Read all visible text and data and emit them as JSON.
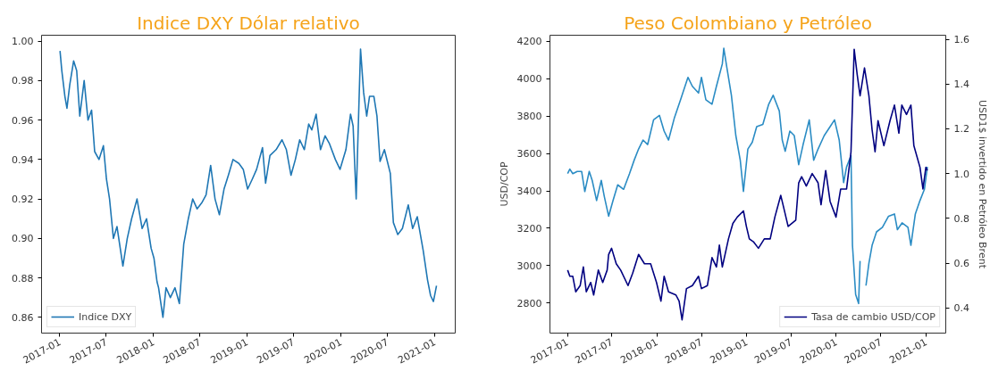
{
  "chart_data": [
    {
      "type": "line",
      "title": "Indice DXY Dólar relativo",
      "legend": "bottom left",
      "grid": false,
      "xlim": [
        "2016-10-22",
        "2021-03-22"
      ],
      "xticks": [
        "2017-01",
        "2017-07",
        "2018-01",
        "2018-07",
        "2019-01",
        "2019-07",
        "2020-01",
        "2020-07",
        "2021-01"
      ],
      "ylim": [
        0.852,
        1.003
      ],
      "yticks": [
        0.86,
        0.88,
        {
          "value": 0.9,
          "label": "0.90"
        },
        0.92,
        0.94,
        0.96,
        0.98,
        {
          "value": 1,
          "label": "1.00"
        }
      ],
      "series": [
        {
          "name": "Indice DXY",
          "color": "#1f77b4",
          "x": [
            "2017-01-02",
            "2017-01-09",
            "2017-01-21",
            "2017-01-29",
            "2017-02-09",
            "2017-02-24",
            "2017-03-08",
            "2017-03-20",
            "2017-04-06",
            "2017-04-21",
            "2017-05-05",
            "2017-05-17",
            "2017-06-03",
            "2017-06-20",
            "2017-07-02",
            "2017-07-14",
            "2017-07-29",
            "2017-08-12",
            "2017-09-04",
            "2017-09-21",
            "2017-10-08",
            "2017-10-29",
            "2017-11-18",
            "2017-12-05",
            "2017-12-23",
            "2018-01-03",
            "2018-01-15",
            "2018-01-21",
            "2018-02-07",
            "2018-02-19",
            "2018-03-08",
            "2018-03-26",
            "2018-04-12",
            "2018-04-29",
            "2018-05-17",
            "2018-06-03",
            "2018-06-20",
            "2018-07-08",
            "2018-07-25",
            "2018-08-12",
            "2018-08-29",
            "2018-09-15",
            "2018-10-03",
            "2018-10-20",
            "2018-11-07",
            "2018-11-30",
            "2018-12-17",
            "2019-01-03",
            "2019-01-21",
            "2019-02-07",
            "2019-03-02",
            "2019-03-14",
            "2019-03-31",
            "2019-04-24",
            "2019-05-17",
            "2019-06-03",
            "2019-06-21",
            "2019-07-08",
            "2019-07-25",
            "2019-08-12",
            "2019-08-29",
            "2019-09-10",
            "2019-09-27",
            "2019-10-14",
            "2019-11-01",
            "2019-11-18",
            "2019-12-11",
            "2019-12-29",
            "2020-01-21",
            "2020-02-08",
            "2020-02-18",
            "2020-03-01",
            "2020-03-18",
            "2020-03-30",
            "2020-04-11",
            "2020-04-22",
            "2020-05-09",
            "2020-05-21",
            "2020-06-02",
            "2020-06-19",
            "2020-07-12",
            "2020-07-24",
            "2020-08-10",
            "2020-08-28",
            "2020-09-20",
            "2020-10-07",
            "2020-10-25",
            "2020-11-17",
            "2020-12-04",
            "2020-12-16",
            "2020-12-27",
            "2021-01-08"
          ],
          "values": [
            0.995,
            0.985,
            0.972,
            0.966,
            0.978,
            0.99,
            0.985,
            0.962,
            0.98,
            0.96,
            0.965,
            0.944,
            0.94,
            0.947,
            0.93,
            0.92,
            0.9,
            0.906,
            0.886,
            0.9,
            0.91,
            0.92,
            0.905,
            0.91,
            0.895,
            0.89,
            0.878,
            0.875,
            0.86,
            0.875,
            0.87,
            0.875,
            0.867,
            0.897,
            0.91,
            0.92,
            0.915,
            0.918,
            0.922,
            0.937,
            0.92,
            0.912,
            0.925,
            0.932,
            0.94,
            0.938,
            0.935,
            0.925,
            0.93,
            0.935,
            0.946,
            0.928,
            0.942,
            0.945,
            0.95,
            0.945,
            0.932,
            0.94,
            0.95,
            0.945,
            0.958,
            0.955,
            0.963,
            0.945,
            0.952,
            0.948,
            0.94,
            0.935,
            0.945,
            0.963,
            0.957,
            0.92,
            0.996,
            0.974,
            0.962,
            0.972,
            0.972,
            0.962,
            0.939,
            0.945,
            0.933,
            0.908,
            0.902,
            0.905,
            0.917,
            0.905,
            0.911,
            0.894,
            0.879,
            0.871,
            0.868,
            0.876
          ]
        }
      ]
    },
    {
      "type": "line",
      "title": "Peso Colombiano y Petróleo",
      "ylabel": "USD/COP",
      "y2label": "USD1$ invertido en Petróleo Brent",
      "legend": "bottom right",
      "grid": false,
      "xlim": [
        "2016-10-22",
        "2021-03-22"
      ],
      "xticks": [
        "2017-01",
        "2017-07",
        "2018-01",
        "2018-07",
        "2019-01",
        "2019-07",
        "2020-01",
        "2020-07",
        "2021-01"
      ],
      "ylim": [
        2639,
        4233
      ],
      "yticks": [
        2800,
        3000,
        3200,
        3400,
        3600,
        3800,
        4000,
        4200
      ],
      "y2lim": [
        0.288,
        1.618
      ],
      "y2ticks": [
        0.4,
        0.6,
        0.8,
        {
          "value": 1,
          "label": "1.0"
        },
        1.2,
        1.4,
        1.6
      ],
      "series": [
        {
          "color": "#2b8cc4",
          "axis": "y2",
          "x": [
            "2017-01-02",
            "2017-01-11",
            "2017-01-23",
            "2017-02-10",
            "2017-02-28",
            "2017-03-13",
            "2017-03-31",
            "2017-04-12",
            "2017-04-30",
            "2017-05-19",
            "2017-05-31",
            "2017-06-18",
            "2017-07-06",
            "2017-07-25",
            "2017-08-18",
            "2017-09-11",
            "2017-09-30",
            "2017-10-18",
            "2017-11-05",
            "2017-11-24",
            "2017-12-18",
            "2018-01-11",
            "2018-01-30",
            "2018-02-17",
            "2018-03-13",
            "2018-04-07",
            "2018-05-07",
            "2018-05-25",
            "2018-06-19",
            "2018-07-01",
            "2018-07-19",
            "2018-08-13",
            "2018-08-31",
            "2018-09-24",
            "2018-09-30",
            "2018-10-13",
            "2018-10-31",
            "2018-11-18",
            "2018-12-06",
            "2018-12-19",
            "2019-01-06",
            "2019-01-24",
            "2019-02-11",
            "2019-03-08",
            "2019-04-01",
            "2019-04-19",
            "2019-05-14",
            "2019-05-26",
            "2019-06-07",
            "2019-06-26",
            "2019-07-14",
            "2019-08-01",
            "2019-08-19",
            "2019-09-13",
            "2019-10-01",
            "2019-10-19",
            "2019-11-13",
            "2019-12-07",
            "2019-12-25",
            "2020-01-13",
            "2020-01-31",
            "2020-02-12",
            "2020-03-01",
            "2020-03-07",
            "2020-03-20",
            "2020-04-01",
            "2020-04-07",
            "2020-04-19",
            "2020-05-01",
            "2020-05-13",
            "2020-05-26",
            "2020-06-13",
            "2020-07-07",
            "2020-08-01",
            "2020-08-25",
            "2020-09-06",
            "2020-09-25",
            "2020-10-19",
            "2020-10-31",
            "2020-11-18",
            "2020-12-07",
            "2020-12-25",
            "2021-01-06"
          ],
          "values": [
            1.0,
            1.02,
            1.0,
            1.01,
            1.01,
            0.92,
            1.01,
            0.97,
            0.88,
            0.97,
            0.9,
            0.81,
            0.88,
            0.95,
            0.93,
            1.0,
            1.06,
            1.11,
            1.15,
            1.13,
            1.24,
            1.26,
            1.19,
            1.15,
            1.25,
            1.33,
            1.43,
            1.39,
            1.36,
            1.43,
            1.33,
            1.31,
            1.39,
            1.49,
            1.56,
            1.47,
            1.35,
            1.17,
            1.06,
            0.92,
            1.11,
            1.14,
            1.21,
            1.22,
            1.31,
            1.35,
            1.28,
            1.15,
            1.1,
            1.19,
            1.17,
            1.04,
            1.13,
            1.24,
            1.06,
            1.11,
            1.17,
            1.21,
            1.24,
            1.15,
            0.96,
            1.03,
            1.08,
            0.68,
            0.46,
            0.42,
            0.61,
            null,
            0.5,
            0.6,
            0.68,
            0.74,
            0.76,
            0.81,
            0.82,
            0.75,
            0.78,
            0.76,
            0.68,
            0.82,
            0.88,
            0.93,
            1.03
          ]
        },
        {
          "name": "Tasa de cambio USD/COP",
          "color": "#000080",
          "x": [
            "2017-01-02",
            "2017-01-11",
            "2017-01-23",
            "2017-02-04",
            "2017-02-22",
            "2017-03-07",
            "2017-03-19",
            "2017-04-06",
            "2017-04-18",
            "2017-05-07",
            "2017-05-25",
            "2017-06-12",
            "2017-06-18",
            "2017-06-30",
            "2017-07-19",
            "2017-08-06",
            "2017-09-05",
            "2017-09-24",
            "2017-10-18",
            "2017-11-11",
            "2017-12-06",
            "2017-12-18",
            "2017-12-30",
            "2018-01-17",
            "2018-01-30",
            "2018-02-17",
            "2018-03-19",
            "2018-04-01",
            "2018-04-13",
            "2018-05-01",
            "2018-05-25",
            "2018-06-19",
            "2018-07-01",
            "2018-07-25",
            "2018-08-13",
            "2018-08-31",
            "2018-09-12",
            "2018-09-24",
            "2018-10-19",
            "2018-11-06",
            "2018-11-24",
            "2018-12-19",
            "2018-12-31",
            "2019-01-12",
            "2019-01-30",
            "2019-02-18",
            "2019-03-14",
            "2019-04-07",
            "2019-04-26",
            "2019-05-20",
            "2019-06-01",
            "2019-06-19",
            "2019-07-20",
            "2019-08-01",
            "2019-08-13",
            "2019-09-01",
            "2019-09-25",
            "2019-10-19",
            "2019-10-31",
            "2019-11-19",
            "2019-12-07",
            "2019-12-31",
            "2020-01-19",
            "2020-02-12",
            "2020-03-01",
            "2020-03-14",
            "2020-03-26",
            "2020-04-07",
            "2020-04-25",
            "2020-05-13",
            "2020-05-26",
            "2020-06-07",
            "2020-06-19",
            "2020-07-13",
            "2020-08-07",
            "2020-08-25",
            "2020-09-12",
            "2020-09-24",
            "2020-10-13",
            "2020-10-31",
            "2020-11-12",
            "2020-12-07",
            "2020-12-19",
            "2020-12-31",
            "2021-01-06"
          ],
          "values": [
            2976,
            2943,
            2943,
            2860,
            2893,
            2993,
            2860,
            2910,
            2843,
            2976,
            2910,
            2976,
            3060,
            3093,
            3010,
            2976,
            2893,
            2960,
            3060,
            3010,
            3010,
            2960,
            2910,
            2810,
            2943,
            2860,
            2843,
            2810,
            2710,
            2877,
            2893,
            2943,
            2877,
            2893,
            3043,
            2993,
            3110,
            2993,
            3143,
            3226,
            3260,
            3293,
            3210,
            3143,
            3126,
            3093,
            3143,
            3143,
            3260,
            3376,
            3310,
            3210,
            3243,
            3443,
            3476,
            3426,
            3493,
            3443,
            3326,
            3509,
            3343,
            3260,
            3410,
            3410,
            3609,
            4158,
            4025,
            3909,
            4058,
            3909,
            3726,
            3609,
            3776,
            3642,
            3776,
            3859,
            3709,
            3859,
            3809,
            3859,
            3642,
            3526,
            3410,
            3526,
            3509
          ]
        }
      ]
    }
  ]
}
